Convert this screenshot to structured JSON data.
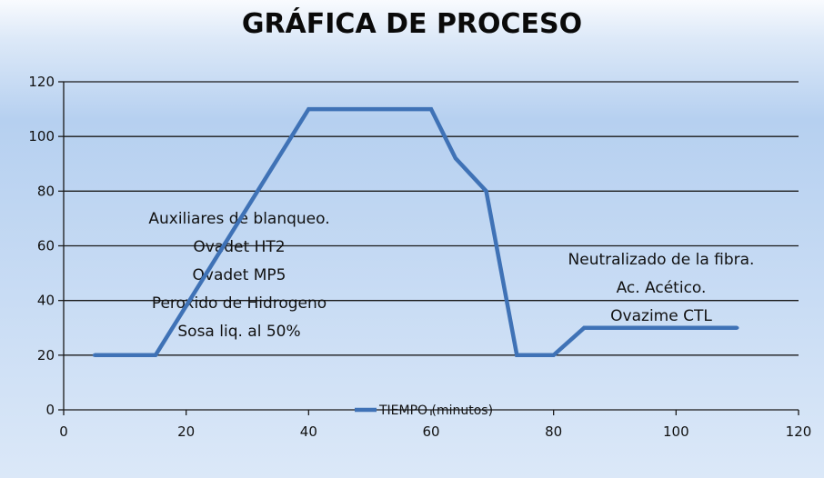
{
  "chart_data": {
    "type": "line",
    "title": "GRÁFICA DE PROCESO",
    "xlim": [
      0,
      120
    ],
    "ylim": [
      0,
      120
    ],
    "x_ticks": [
      0,
      20,
      40,
      60,
      80,
      100,
      120
    ],
    "y_ticks": [
      0,
      20,
      40,
      60,
      80,
      100,
      120
    ],
    "grid": "horizontal",
    "legend_position": "bottom-center",
    "series": [
      {
        "name": "TIEMPO (minutos)",
        "color": "#3f72b6",
        "x": [
          5,
          15,
          40,
          60,
          64,
          69,
          74,
          80,
          85,
          110
        ],
        "y": [
          20,
          20,
          110,
          110,
          92,
          80,
          20,
          20,
          30,
          30
        ]
      }
    ],
    "annotations": [
      {
        "lines": [
          "Auxiliares de blanqueo.",
          "Ovadet HT2",
          "Ovadet MP5",
          "Peroxido de Hidrogeno",
          "Sosa liq. al 50%"
        ]
      },
      {
        "lines": [
          "Neutralizado de la fibra.",
          "Ac. Acético.",
          "Ovazime CTL"
        ]
      }
    ]
  }
}
